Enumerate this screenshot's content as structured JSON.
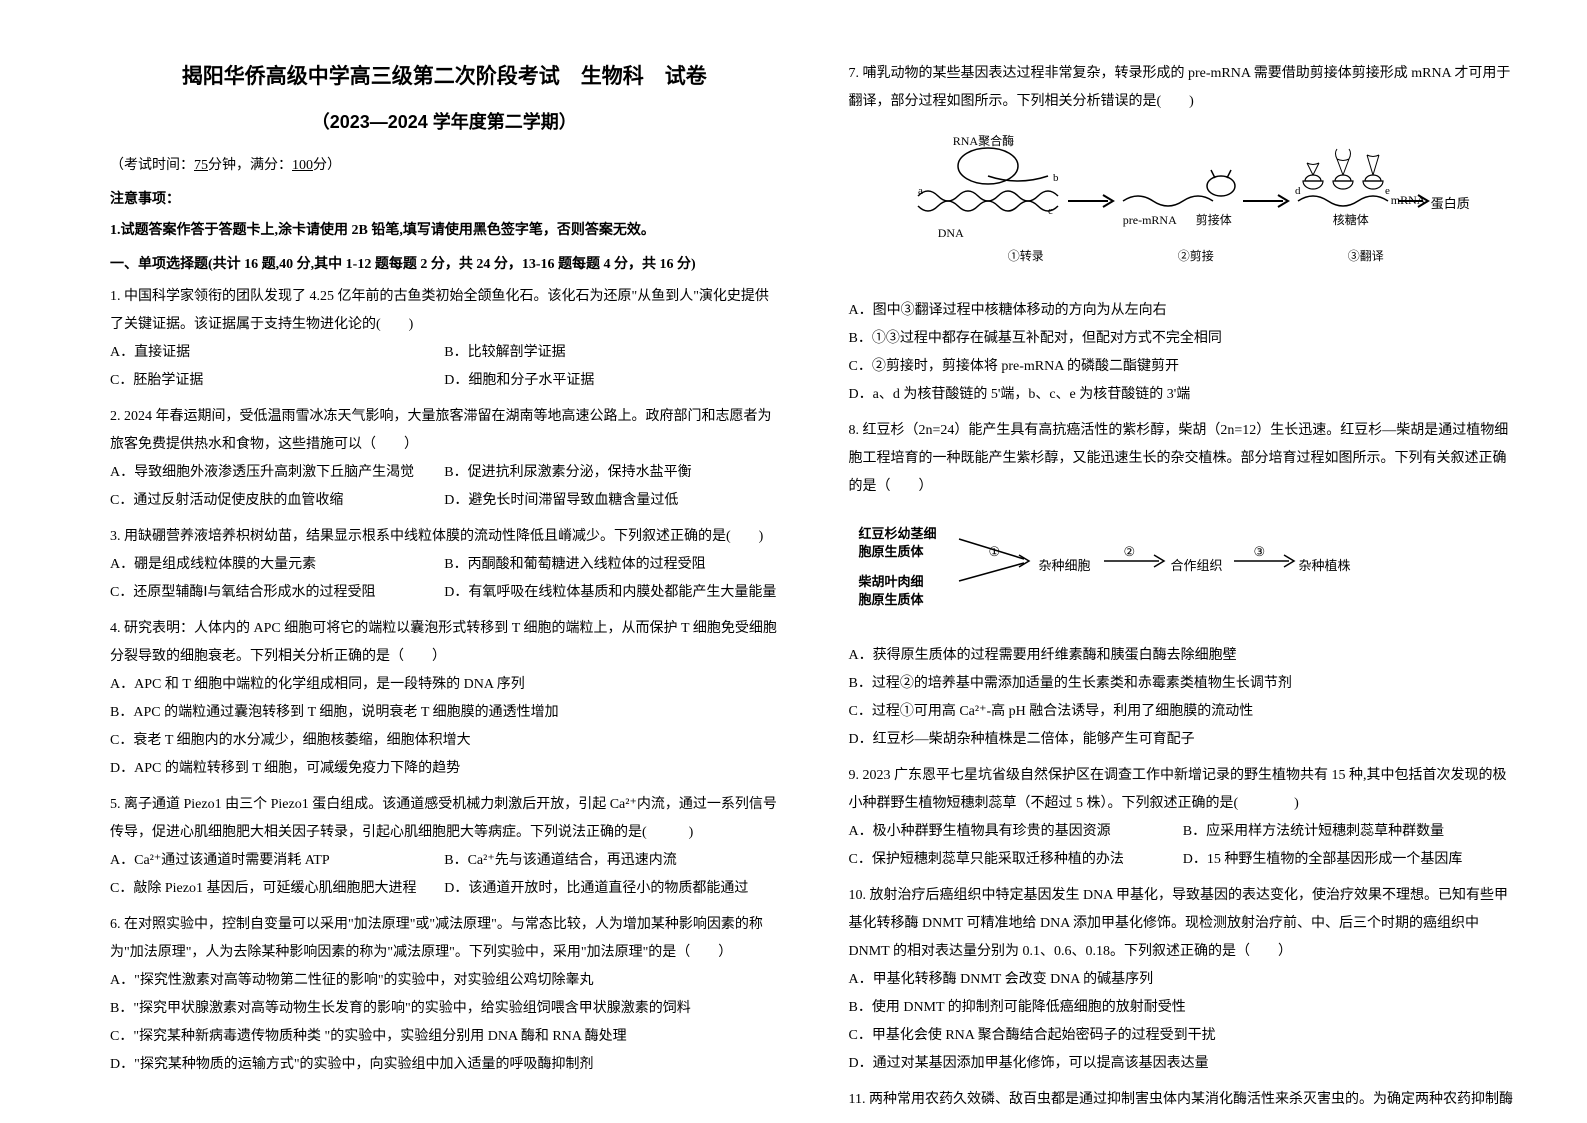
{
  "header": {
    "title": "揭阳华侨高级中学高三级第二次阶段考试　生物科　试卷",
    "subtitle": "（2023—2024 学年度第二学期）",
    "exam_info_prefix": "（考试时间：",
    "exam_info_time": "75",
    "exam_info_mid": "分钟，满分：",
    "exam_info_score": "100",
    "exam_info_suffix": "分）",
    "notice_label": "注意事项：",
    "notice_text": "1.试题答案作答于答题卡上,涂卡请使用 2B 铅笔,填写请使用黑色签字笔，否则答案无效。",
    "section_header": "一、单项选择题(共计 16 题,40 分,其中 1-12 题每题 2 分，共 24 分，13-16 题每题 4 分，共 16 分)"
  },
  "questions_left": [
    {
      "num": "1.",
      "text": "中国科学家领衔的团队发现了 4.25 亿年前的古鱼类初始全颌鱼化石。该化石为还原\"从鱼到人\"演化史提供了关键证据。该证据属于支持生物进化论的(　　)",
      "options": [
        "A．直接证据",
        "B．比较解剖学证据",
        "C．胚胎学证据",
        "D．细胞和分子水平证据"
      ],
      "layout": "half"
    },
    {
      "num": "2.",
      "text": "2024 年春运期间，受低温雨雪冰冻天气影响，大量旅客滞留在湖南等地高速公路上。政府部门和志愿者为旅客免费提供热水和食物，这些措施可以（　　）",
      "options": [
        "A．导致细胞外液渗透压升高刺激下丘脑产生渴觉",
        "B．促进抗利尿激素分泌，保持水盐平衡",
        "C．通过反射活动促使皮肤的血管收缩",
        "D．避免长时间滞留导致血糖含量过低"
      ],
      "layout": "half"
    },
    {
      "num": "3.",
      "text": "用缺硼营养液培养枳树幼苗，结果显示根系中线粒体膜的流动性降低且嵴减少。下列叙述正确的是(　　)",
      "options": [
        "A．硼是组成线粒体膜的大量元素",
        "B．丙酮酸和葡萄糖进入线粒体的过程受阻",
        "C．还原型辅酶Ⅰ与氧结合形成水的过程受阻",
        "D．有氧呼吸在线粒体基质和内膜处都能产生大量能量"
      ],
      "layout": "half"
    },
    {
      "num": "4.",
      "text": "研究表明：人体内的 APC 细胞可将它的端粒以囊泡形式转移到 T 细胞的端粒上，从而保护 T 细胞免受细胞分裂导致的细胞衰老。下列相关分析正确的是（　　）",
      "options": [
        "A．APC 和 T 细胞中端粒的化学组成相同，是一段特殊的 DNA 序列",
        "B．APC 的端粒通过囊泡转移到 T 细胞，说明衰老 T 细胞膜的通透性增加",
        "C．衰老 T 细胞内的水分减少，细胞核萎缩，细胞体积增大",
        "D．APC 的端粒转移到 T 细胞，可减缓免疫力下降的趋势"
      ],
      "layout": "full"
    },
    {
      "num": "5.",
      "text": "离子通道 Piezo1 由三个 Piezo1 蛋白组成。该通道感受机械力刺激后开放，引起 Ca²⁺内流，通过一系列信号传导，促进心肌细胞肥大相关因子转录，引起心肌细胞肥大等病症。下列说法正确的是(　　　)",
      "options": [
        "A．Ca²⁺通过该通道时需要消耗 ATP",
        "B．Ca²⁺先与该通道结合，再迅速内流",
        "C．敲除 Piezo1 基因后，可延缓心肌细胞肥大进程",
        "D．该通道开放时，比通道直径小的物质都能通过"
      ],
      "layout": "half"
    },
    {
      "num": "6.",
      "text": "在对照实验中，控制自变量可以采用\"加法原理\"或\"减法原理\"。与常态比较，人为增加某种影响因素的称为\"加法原理\"，人为去除某种影响因素的称为\"减法原理\"。下列实验中，采用\"加法原理\"的是（　　）",
      "options": [
        "A．\"探究性激素对高等动物第二性征的影响\"的实验中，对实验组公鸡切除睾丸",
        "B．\"探究甲状腺激素对高等动物生长发育的影响\"的实验中，给实验组饲喂含甲状腺激素的饲料",
        "C．\"探究某种新病毒遗传物质种类 \"的实验中，实验组分别用 DNA 酶和 RNA 酶处理",
        "D．\"探究某种物质的运输方式\"的实验中，向实验组中加入适量的呼吸酶抑制剂"
      ],
      "layout": "full"
    }
  ],
  "questions_right": [
    {
      "num": "7.",
      "text": "哺乳动物的某些基因表达过程非常复杂，转录形成的 pre-mRNA 需要借助剪接体剪接形成 mRNA 才可用于翻译，部分过程如图所示。下列相关分析错误的是(　　)",
      "has_diagram": true,
      "options": [
        "A．图中③翻译过程中核糖体移动的方向为从左向右",
        "B．①③过程中都存在碱基互补配对，但配对方式不完全相同",
        "C．②剪接时，剪接体将 pre-mRNA 的磷酸二酯键剪开",
        "D．a、d 为核苷酸链的 5'端，b、c、e 为核苷酸链的 3'端"
      ],
      "layout": "full"
    },
    {
      "num": "8.",
      "text": "红豆杉（2n=24）能产生具有高抗癌活性的紫杉醇，柴胡（2n=12）生长迅速。红豆杉—柴胡是通过植物细胞工程培育的一种既能产生紫杉醇，又能迅速生长的杂交植株。部分培育过程如图所示。下列有关叙述正确的是（　　）",
      "has_diagram": true,
      "options": [
        "A．获得原生质体的过程需要用纤维素酶和胰蛋白酶去除细胞壁",
        "B．过程②的培养基中需添加适量的生长素类和赤霉素类植物生长调节剂",
        "C．过程①可用高 Ca²⁺-高 pH 融合法诱导，利用了细胞膜的流动性",
        "D．红豆杉—柴胡杂种植株是二倍体，能够产生可育配子"
      ],
      "layout": "full"
    },
    {
      "num": "9.",
      "text": "2023 广东恩平七星坑省级自然保护区在调查工作中新增记录的野生植物共有 15 种,其中包括首次发现的极小种群野生植物短穗刺蕊草（不超过 5 株）。下列叙述正确的是(　　　　)",
      "options": [
        "A．极小种群野生植物具有珍贵的基因资源",
        "B．应采用样方法统计短穗刺蕊草种群数量",
        "C．保护短穗刺蕊草只能采取迁移种植的办法",
        "D．15 种野生植物的全部基因形成一个基因库"
      ],
      "layout": "half"
    },
    {
      "num": "10.",
      "text": "放射治疗后癌组织中特定基因发生 DNA 甲基化，导致基因的表达变化，使治疗效果不理想。已知有些甲基化转移酶 DNMT 可精准地给 DNA 添加甲基化修饰。现检测放射治疗前、中、后三个时期的癌组织中 DNMT 的相对表达量分别为 0.1、0.6、0.18。下列叙述正确的是（　　）",
      "options": [
        "A．甲基化转移酶 DNMT 会改变 DNA 的碱基序列",
        "B．使用 DNMT 的抑制剂可能降低癌细胞的放射耐受性",
        "C．甲基化会使 RNA 聚合酶结合起始密码子的过程受到干扰",
        "D．通过对某基因添加甲基化修饰，可以提高该基因表达量"
      ],
      "layout": "full"
    },
    {
      "num": "11.",
      "text": "两种常用农药久效磷、敌百虫都是通过抑制害虫体内某消化酶活性来杀灭害虫的。为确定两种农药抑制酶",
      "options": [],
      "layout": "full"
    }
  ],
  "diagram1": {
    "labels": {
      "rna_pol": "RNA聚合酶",
      "dna": "DNA",
      "pre_mrna": "pre-mRNA",
      "splice": "剪接体",
      "mrna": "mRNA",
      "ribosome": "核糖体",
      "protein": "蛋白质",
      "step1": "①转录",
      "step2": "②剪接",
      "step3": "③翻译",
      "a": "a",
      "b": "b",
      "c": "c",
      "d": "d",
      "e": "e"
    }
  },
  "diagram2": {
    "labels": {
      "cell1": "红豆杉幼茎细",
      "cell1b": "胞原生质体",
      "cell2": "柴胡叶肉细",
      "cell2b": "胞原生质体",
      "hybrid": "杂种细胞",
      "tissue": "合作组织",
      "plant": "杂种植株",
      "step1": "①",
      "step2": "②",
      "step3": "③"
    }
  }
}
